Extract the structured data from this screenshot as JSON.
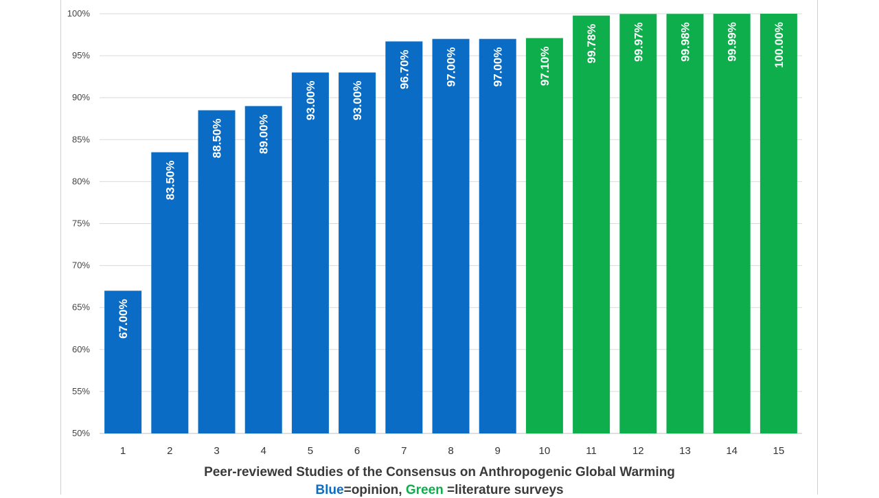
{
  "chart_data": {
    "type": "bar",
    "categories": [
      "1",
      "2",
      "3",
      "4",
      "5",
      "6",
      "7",
      "8",
      "9",
      "10",
      "11",
      "12",
      "13",
      "14",
      "15"
    ],
    "values": [
      67.0,
      83.5,
      88.5,
      89.0,
      93.0,
      93.0,
      96.7,
      97.0,
      97.0,
      97.1,
      99.78,
      99.97,
      99.98,
      99.99,
      100.0
    ],
    "data_labels": [
      "67.00%",
      "83.50%",
      "88.50%",
      "89.00%",
      "93.00%",
      "93.00%",
      "96.70%",
      "97.00%",
      "97.00%",
      "97.10%",
      "99.78%",
      "99.97%",
      "99.98%",
      "99.99%",
      "100.00%"
    ],
    "groups": [
      "opinion",
      "opinion",
      "opinion",
      "opinion",
      "opinion",
      "opinion",
      "opinion",
      "opinion",
      "opinion",
      "survey",
      "survey",
      "survey",
      "survey",
      "survey",
      "survey"
    ],
    "group_colors": {
      "opinion": "#0a6cc4",
      "survey": "#0fae4c"
    },
    "ylim": [
      50,
      100
    ],
    "yticks": [
      50,
      55,
      60,
      65,
      70,
      75,
      80,
      85,
      90,
      95,
      100
    ],
    "ytick_labels": [
      "50%",
      "55%",
      "60%",
      "65%",
      "70%",
      "75%",
      "80%",
      "85%",
      "90%",
      "95%",
      "100%"
    ],
    "xlabel": "Peer-reviewed Studies of the Consensus on Anthropogenic Global Warming",
    "legend": {
      "blue_word": "Blue",
      "blue_rest": "=opinion, ",
      "green_word": "Green",
      "green_rest": " =literature surveys"
    },
    "grid": true
  }
}
